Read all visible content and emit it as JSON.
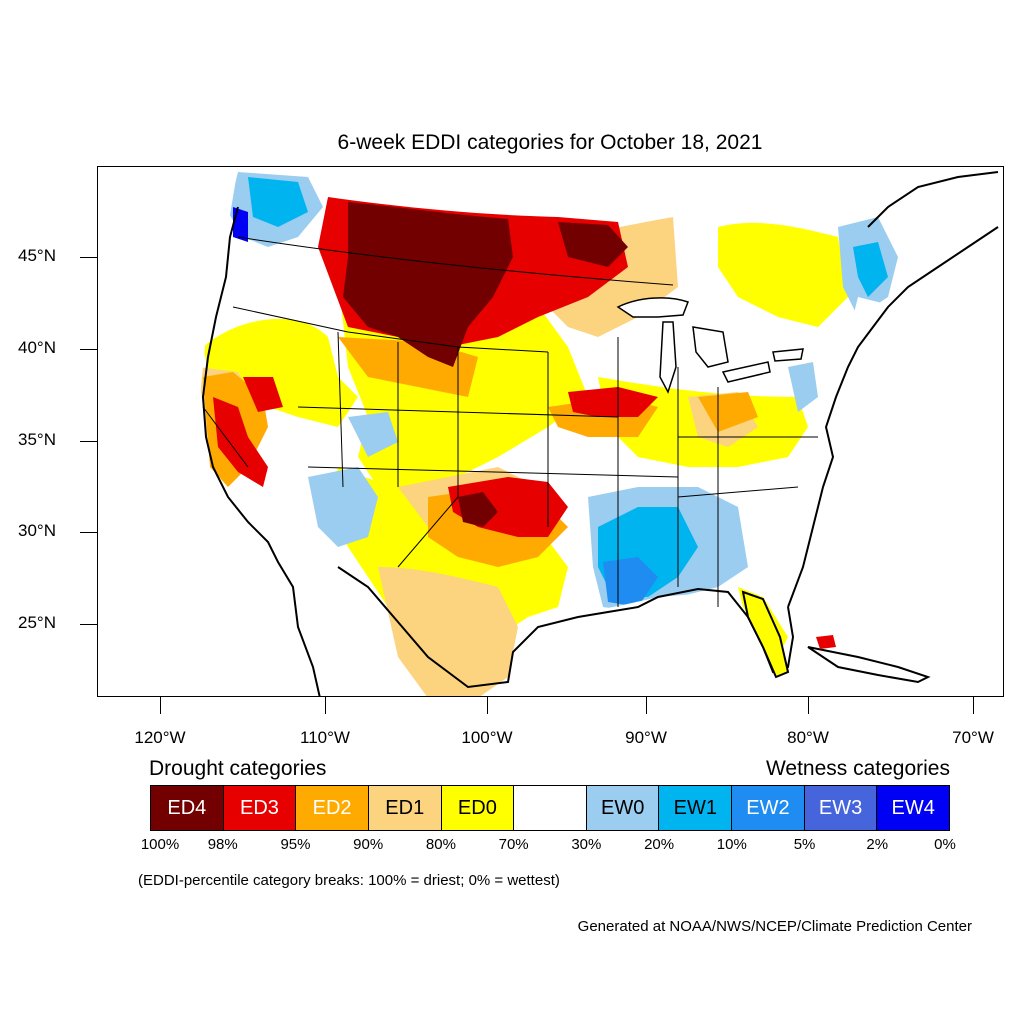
{
  "title": "6-week EDDI categories for October 18, 2021",
  "lat_labels": [
    "45°N",
    "40°N",
    "35°N",
    "30°N",
    "25°N"
  ],
  "lon_labels": [
    "120°W",
    "110°W",
    "100°W",
    "90°W",
    "80°W",
    "70°W"
  ],
  "legend": {
    "drought_heading": "Drought categories",
    "wetness_heading": "Wetness categories",
    "categories": [
      {
        "label": "ED4",
        "color": "#730000",
        "text_color": "#ffffff"
      },
      {
        "label": "ED3",
        "color": "#e60000",
        "text_color": "#ffffff"
      },
      {
        "label": "ED2",
        "color": "#ffaa00",
        "text_color": "#ffffff"
      },
      {
        "label": "ED1",
        "color": "#fcd37f",
        "text_color": "#000000"
      },
      {
        "label": "ED0",
        "color": "#ffff00",
        "text_color": "#000000"
      },
      {
        "label": "",
        "color": "#ffffff",
        "text_color": "#000000"
      },
      {
        "label": "EW0",
        "color": "#9bcdf0",
        "text_color": "#000000"
      },
      {
        "label": "EW1",
        "color": "#00b4f0",
        "text_color": "#000000"
      },
      {
        "label": "EW2",
        "color": "#1e8cf0",
        "text_color": "#ffffff"
      },
      {
        "label": "EW3",
        "color": "#4664dc",
        "text_color": "#ffffff"
      },
      {
        "label": "EW4",
        "color": "#0000f5",
        "text_color": "#ffffff"
      }
    ],
    "breaks": [
      "100%",
      "98%",
      "95%",
      "90%",
      "80%",
      "70%",
      "30%",
      "20%",
      "10%",
      "5%",
      "2%",
      "0%"
    ],
    "note": "(EDDI-percentile category breaks: 100% = driest; 0% = wettest)"
  },
  "credit": "Generated at NOAA/NWS/NCEP/Climate Prediction Center"
}
